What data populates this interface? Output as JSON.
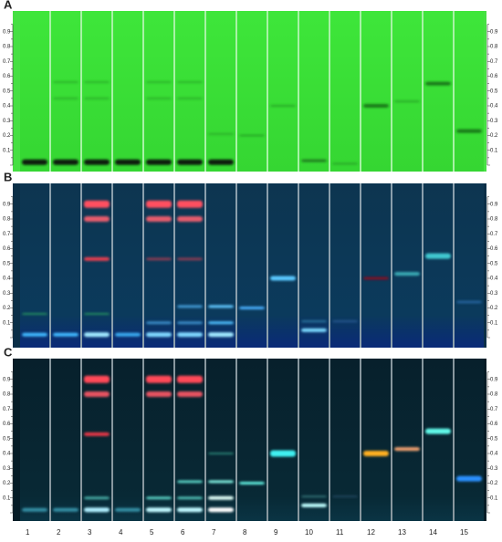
{
  "panels": [
    {
      "label": "A"
    },
    {
      "label": "B"
    },
    {
      "label": "C"
    }
  ],
  "rf_scale": [
    "0.9",
    "0.8",
    "0.7",
    "0.6",
    "0.5",
    "0.4",
    "0.3",
    "0.2",
    "0.1"
  ],
  "lanes": [
    "1",
    "2",
    "3",
    "4",
    "5",
    "6",
    "7",
    "8",
    "9",
    "10",
    "11",
    "12",
    "13",
    "14",
    "15"
  ]
}
